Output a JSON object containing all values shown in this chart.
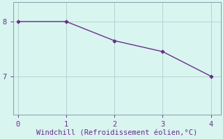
{
  "x": [
    0,
    1,
    2,
    3,
    4
  ],
  "y": [
    8.0,
    8.0,
    7.65,
    7.45,
    7.0
  ],
  "line_color": "#6b2d8b",
  "marker_color": "#6b2d8b",
  "background_color": "#d8f5f0",
  "grid_color": "#b0cece",
  "spine_color": "#8899aa",
  "xlabel": "Windchill (Refroidissement éolien,°C)",
  "xlabel_color": "#6b2d8b",
  "tick_color": "#6b2d8b",
  "ylim": [
    6.3,
    8.35
  ],
  "xlim": [
    -0.1,
    4.2
  ],
  "yticks": [
    7,
    8
  ],
  "xticks": [
    0,
    1,
    2,
    3,
    4
  ],
  "xlabel_fontsize": 7.5,
  "tick_fontsize": 7.5,
  "marker_style": "D",
  "marker_size": 2.5,
  "line_width": 1.0
}
